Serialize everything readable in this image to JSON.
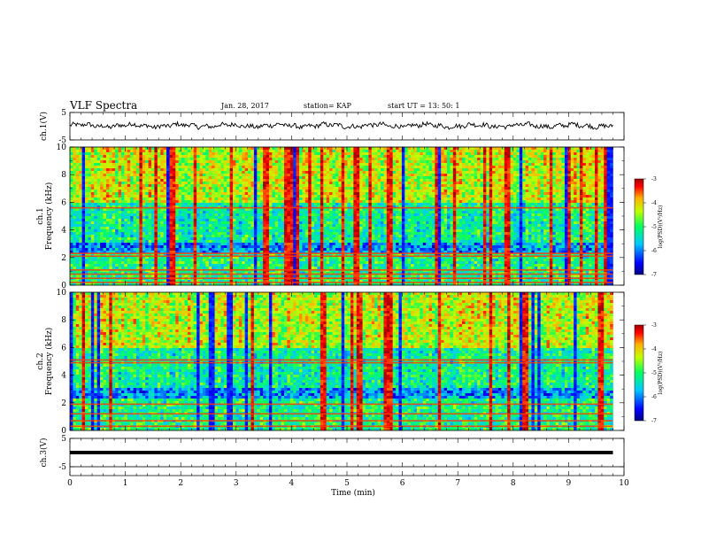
{
  "header": {
    "title": "VLF Spectra",
    "date": "Jan. 28, 2017",
    "station": "station= KAP",
    "start_ut": "start  UT =   13: 50: 1"
  },
  "chart_data": [
    {
      "type": "line",
      "name": "ch1-waveform",
      "ylabel": "ch.1(V)",
      "ylim": [
        -5,
        5
      ],
      "yticks": [
        "5",
        "-5"
      ],
      "xlim": [
        0,
        10
      ],
      "data_end": 9.8,
      "baseline": 0.2,
      "amplitude": 1.0,
      "color": "#000000"
    },
    {
      "type": "heatmap",
      "name": "ch1-spectrogram",
      "ylabel": "ch.1\nFrequency (kHz)",
      "ylim": [
        0,
        10
      ],
      "yticks": [
        "0",
        "2",
        "4",
        "6",
        "8",
        "10"
      ],
      "xlim": [
        0,
        10
      ],
      "data_end": 9.8,
      "colorbar": {
        "label": "log(PSD)(V²/Hz)",
        "range": [
          -7,
          -3
        ],
        "ticks": [
          "-3",
          "-4",
          "-5",
          "-6",
          "-7"
        ]
      },
      "bands_khz": [
        0.2,
        0.5,
        0.8,
        1.1,
        2.1,
        2.3,
        5.6
      ]
    },
    {
      "type": "heatmap",
      "name": "ch2-spectrogram",
      "ylabel": "ch.2\nFrequency (kHz)",
      "ylim": [
        0,
        10
      ],
      "yticks": [
        "0",
        "2",
        "4",
        "6",
        "8",
        "10"
      ],
      "xlim": [
        0,
        10
      ],
      "data_end": 9.8,
      "colorbar": {
        "label": "log(PSD)(V²/Hz)",
        "range": [
          -7,
          -3
        ],
        "ticks": [
          "-3",
          "-4",
          "-5",
          "-6",
          "-7"
        ]
      },
      "bands_khz": [
        0.3,
        0.7,
        1.2,
        1.9,
        4.9,
        5.1
      ]
    },
    {
      "type": "line",
      "name": "ch3-waveform",
      "ylabel": "ch.3(V)",
      "ylim": [
        -5,
        5
      ],
      "yticks": [
        "5",
        "-5"
      ],
      "xlim": [
        0,
        10
      ],
      "data_end": 9.8,
      "baseline": 0.0,
      "amplitude": 0.0,
      "color": "#000000"
    }
  ],
  "xaxis": {
    "label": "Time (min)",
    "ticks": [
      "0",
      "1",
      "2",
      "3",
      "4",
      "5",
      "6",
      "7",
      "8",
      "9",
      "10"
    ],
    "range": [
      0,
      10
    ]
  }
}
